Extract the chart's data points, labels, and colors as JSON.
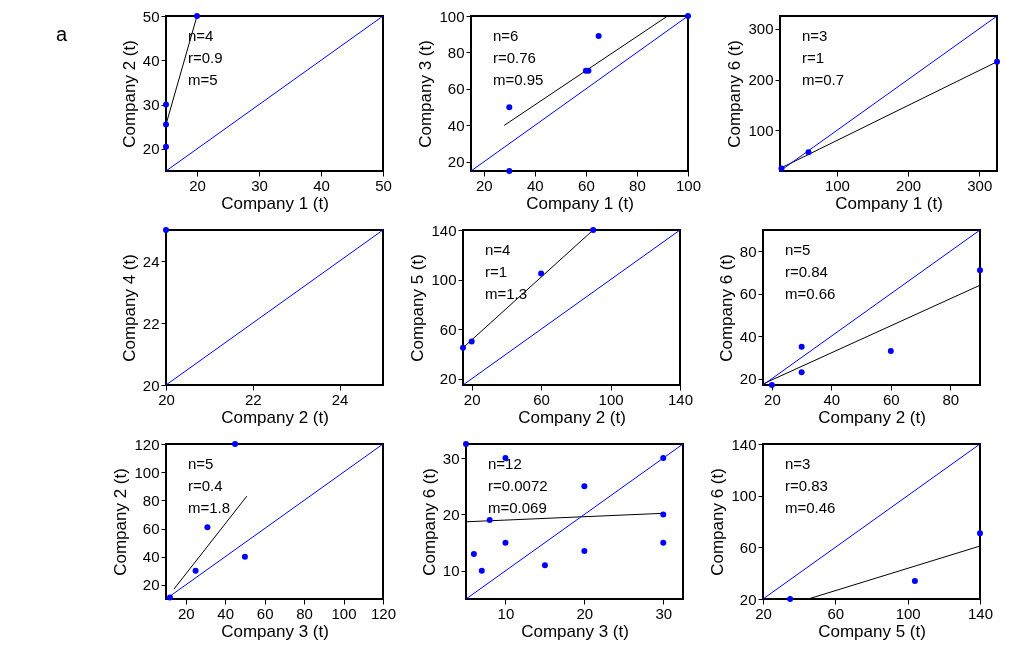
{
  "chart_data": [
    {
      "type": "scatter",
      "title": "a",
      "xlabel": "Company 1 (t)",
      "ylabel": "Company 2 (t)",
      "xlim": [
        15,
        50
      ],
      "ylim": [
        15,
        50
      ],
      "xticks": [
        20,
        30,
        40,
        50
      ],
      "yticks": [
        20,
        30,
        40,
        50
      ],
      "grid": false,
      "legend": false,
      "annotations": [
        "n=4",
        "r=0.9",
        "m=5"
      ],
      "series": [
        {
          "type": "scatter",
          "color": "#0000ff",
          "marker": "circle",
          "x": [
            15,
            15,
            15,
            20
          ],
          "values": [
            20.5,
            25.5,
            30,
            50
          ]
        },
        {
          "type": "line",
          "color": "#000000",
          "marker": "none",
          "x": [
            15,
            20
          ],
          "values": [
            25.5,
            50
          ]
        },
        {
          "type": "line",
          "color": "#0000ff",
          "marker": "none",
          "x": [
            15,
            50
          ],
          "values": [
            15,
            50
          ]
        }
      ]
    },
    {
      "type": "scatter",
      "xlabel": "Company 1 (t)",
      "ylabel": "Company 3 (t)",
      "xlim": [
        15,
        100
      ],
      "ylim": [
        15,
        100
      ],
      "xticks": [
        20,
        40,
        60,
        80,
        100
      ],
      "yticks": [
        20,
        40,
        60,
        80,
        100
      ],
      "grid": false,
      "legend": false,
      "annotations": [
        "n=6",
        "r=0.76",
        "m=0.95"
      ],
      "series": [
        {
          "type": "scatter",
          "color": "#0000ff",
          "marker": "circle",
          "x": [
            30,
            30,
            60,
            61,
            65,
            100
          ],
          "values": [
            50,
            15,
            70,
            70,
            89,
            100
          ]
        },
        {
          "type": "line",
          "color": "#000000",
          "marker": "none",
          "x": [
            28,
            92
          ],
          "values": [
            40,
            100
          ]
        },
        {
          "type": "line",
          "color": "#0000ff",
          "marker": "none",
          "x": [
            15,
            100
          ],
          "values": [
            15,
            100
          ]
        }
      ]
    },
    {
      "type": "scatter",
      "xlabel": "Company 1 (t)",
      "ylabel": "Company 6 (t)",
      "xlim": [
        20,
        325
      ],
      "ylim": [
        20,
        325
      ],
      "xticks": [
        100,
        200,
        300
      ],
      "yticks": [
        100,
        200,
        300
      ],
      "grid": false,
      "legend": false,
      "annotations": [
        "n=3",
        "r=1",
        "m=0.7"
      ],
      "series": [
        {
          "type": "scatter",
          "color": "#0000ff",
          "marker": "circle",
          "x": [
            22,
            60,
            325
          ],
          "values": [
            25,
            57,
            235
          ]
        },
        {
          "type": "line",
          "color": "#000000",
          "marker": "none",
          "x": [
            20,
            325
          ],
          "values": [
            25,
            235
          ]
        },
        {
          "type": "line",
          "color": "#0000ff",
          "marker": "none",
          "x": [
            20,
            325
          ],
          "values": [
            20,
            325
          ]
        }
      ]
    },
    {
      "type": "scatter",
      "xlabel": "Company 2 (t)",
      "ylabel": "Company 4 (t)",
      "xlim": [
        20,
        25
      ],
      "ylim": [
        20,
        25
      ],
      "xticks": [
        20,
        22,
        24
      ],
      "yticks": [
        20,
        22,
        24
      ],
      "grid": false,
      "legend": false,
      "series": [
        {
          "type": "scatter",
          "color": "#0000ff",
          "marker": "circle",
          "x": [
            20
          ],
          "values": [
            25
          ]
        },
        {
          "type": "line",
          "color": "#0000ff",
          "marker": "none",
          "x": [
            20,
            25
          ],
          "values": [
            20,
            25
          ]
        }
      ]
    },
    {
      "type": "scatter",
      "xlabel": "Company 2 (t)",
      "ylabel": "Company 5 (t)",
      "xlim": [
        15,
        140
      ],
      "ylim": [
        15,
        140
      ],
      "xticks": [
        20,
        60,
        100,
        140
      ],
      "yticks": [
        20,
        60,
        100,
        140
      ],
      "grid": false,
      "legend": false,
      "annotations": [
        "n=4",
        "r=1",
        "m=1.3"
      ],
      "series": [
        {
          "type": "scatter",
          "color": "#0000ff",
          "marker": "circle",
          "x": [
            15,
            20,
            60,
            90
          ],
          "values": [
            45,
            50,
            105,
            140
          ]
        },
        {
          "type": "line",
          "color": "#000000",
          "marker": "none",
          "x": [
            15,
            90
          ],
          "values": [
            45,
            140
          ]
        },
        {
          "type": "line",
          "color": "#0000ff",
          "marker": "none",
          "x": [
            15,
            140
          ],
          "values": [
            15,
            140
          ]
        }
      ]
    },
    {
      "type": "scatter",
      "xlabel": "Company 2 (t)",
      "ylabel": "Company 6 (t)",
      "xlim": [
        17,
        90
      ],
      "ylim": [
        17,
        90
      ],
      "xticks": [
        20,
        40,
        60,
        80
      ],
      "yticks": [
        20,
        40,
        60,
        80
      ],
      "grid": false,
      "legend": false,
      "annotations": [
        "n=5",
        "r=0.84",
        "m=0.66"
      ],
      "series": [
        {
          "type": "scatter",
          "color": "#0000ff",
          "marker": "circle",
          "x": [
            20,
            30,
            30,
            60,
            90
          ],
          "values": [
            17,
            35,
            23,
            33,
            71
          ]
        },
        {
          "type": "line",
          "color": "#000000",
          "marker": "none",
          "x": [
            17,
            90
          ],
          "values": [
            17.5,
            64
          ]
        },
        {
          "type": "line",
          "color": "#0000ff",
          "marker": "none",
          "x": [
            17,
            90
          ],
          "values": [
            17,
            90
          ]
        }
      ]
    },
    {
      "type": "scatter",
      "xlabel": "Company 3 (t)",
      "ylabel": "Company 2 (t)",
      "xlim": [
        10,
        120
      ],
      "ylim": [
        10,
        120
      ],
      "xticks": [
        20,
        40,
        60,
        80,
        100,
        120
      ],
      "yticks": [
        20,
        40,
        60,
        80,
        100,
        120
      ],
      "grid": false,
      "legend": false,
      "annotations": [
        "n=5",
        "r=0.4",
        "m=1.8"
      ],
      "series": [
        {
          "type": "scatter",
          "color": "#0000ff",
          "marker": "circle",
          "x": [
            12,
            25,
            31,
            45,
            50
          ],
          "values": [
            11,
            30,
            61,
            120,
            40
          ]
        },
        {
          "type": "line",
          "color": "#000000",
          "marker": "none",
          "x": [
            14,
            51
          ],
          "values": [
            17,
            83
          ]
        },
        {
          "type": "line",
          "color": "#0000ff",
          "marker": "none",
          "x": [
            10,
            120
          ],
          "values": [
            10,
            120
          ]
        }
      ]
    },
    {
      "type": "scatter",
      "xlabel": "Company 3 (t)",
      "ylabel": "Company 6 (t)",
      "xlim": [
        5,
        32.5
      ],
      "ylim": [
        5,
        32.5
      ],
      "xticks": [
        10,
        20,
        30
      ],
      "yticks": [
        10,
        20,
        30
      ],
      "grid": false,
      "legend": false,
      "annotations": [
        "n=12",
        "r=0.0072",
        "m=0.069"
      ],
      "series": [
        {
          "type": "scatter",
          "color": "#0000ff",
          "marker": "circle",
          "x": [
            5,
            6,
            7,
            8,
            10,
            10,
            15,
            20,
            20,
            30,
            30,
            30
          ],
          "values": [
            32.5,
            13,
            10,
            19,
            30,
            15,
            11,
            25,
            13.5,
            30,
            20,
            15
          ]
        },
        {
          "type": "line",
          "color": "#000000",
          "marker": "none",
          "x": [
            5,
            30
          ],
          "values": [
            18.7,
            20.2
          ]
        },
        {
          "type": "line",
          "color": "#0000ff",
          "marker": "none",
          "x": [
            5,
            32.5
          ],
          "values": [
            5,
            32.5
          ]
        }
      ]
    },
    {
      "type": "scatter",
      "xlabel": "Company 5 (t)",
      "ylabel": "Company 6 (t)",
      "xlim": [
        20,
        140
      ],
      "ylim": [
        20,
        140
      ],
      "xticks": [
        20,
        60,
        100,
        140
      ],
      "yticks": [
        20,
        60,
        100,
        140
      ],
      "grid": false,
      "legend": false,
      "annotations": [
        "n=3",
        "r=0.83",
        "m=0.46"
      ],
      "series": [
        {
          "type": "scatter",
          "color": "#0000ff",
          "marker": "circle",
          "x": [
            35,
            104,
            140
          ],
          "values": [
            20,
            34,
            71
          ]
        },
        {
          "type": "line",
          "color": "#000000",
          "marker": "none",
          "x": [
            45,
            140
          ],
          "values": [
            20,
            61
          ]
        },
        {
          "type": "line",
          "color": "#0000ff",
          "marker": "none",
          "x": [
            20,
            140
          ],
          "values": [
            20,
            140
          ]
        }
      ]
    }
  ]
}
